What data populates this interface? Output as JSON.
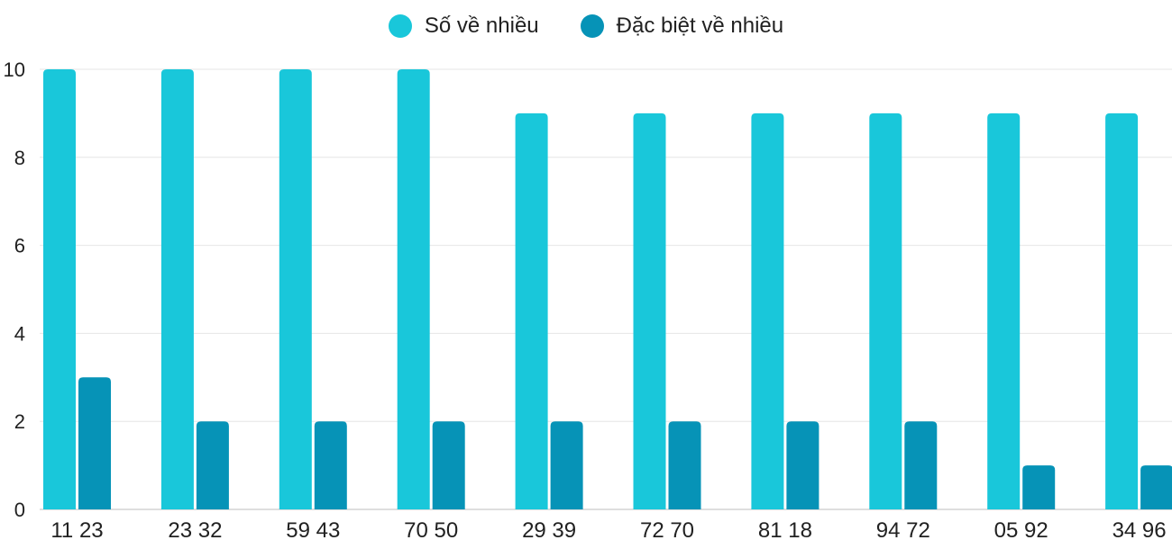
{
  "chart_data": {
    "type": "bar",
    "categories": [
      "11 23",
      "23 32",
      "59 43",
      "70 50",
      "29 39",
      "72 70",
      "81 18",
      "94 72",
      "05 92",
      "34 96"
    ],
    "series": [
      {
        "name": "Số về nhiều",
        "color": "#19c7da",
        "values": [
          10,
          10,
          10,
          10,
          9,
          9,
          9,
          9,
          9,
          9
        ]
      },
      {
        "name": "Đặc biệt về nhiều",
        "color": "#0693b7",
        "values": [
          3,
          2,
          2,
          2,
          2,
          2,
          2,
          2,
          1,
          1
        ]
      }
    ],
    "yticks": [
      "0",
      "2",
      "4",
      "6",
      "8",
      "10"
    ],
    "ylim": [
      0,
      10
    ],
    "grid": true,
    "legend_position": "top-center"
  }
}
